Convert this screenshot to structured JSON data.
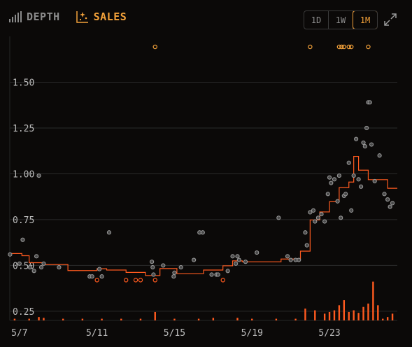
{
  "header": {
    "depth_label": "DEPTH",
    "sales_label": "SALES",
    "ranges": [
      "1D",
      "1W",
      "1M"
    ],
    "active_range": "1M"
  },
  "colors": {
    "accent": "#f4a23a",
    "line": "#ff5a1f",
    "point_fill": "#4a4a4a",
    "point_stroke": "#9a9a9a",
    "grid": "#2a2a2a"
  },
  "chart_data": {
    "type": "scatter",
    "xlabel": "",
    "ylabel": "",
    "x_range": [
      "2025-05-06T12:00",
      "2025-05-26T12:00"
    ],
    "ylim": [
      0.2,
      1.75
    ],
    "yticks": [
      0.25,
      0.5,
      0.75,
      1.0,
      1.25,
      1.5
    ],
    "ytick_labels": [
      "0.25",
      "0.50",
      "0.75",
      "1.00",
      "1.25",
      "1.50"
    ],
    "xticks": [
      "2025-05-07",
      "2025-05-11",
      "2025-05-15",
      "2025-05-19",
      "2025-05-23"
    ],
    "xtick_labels": [
      "5/7",
      "5/11",
      "5/15",
      "5/19",
      "5/23"
    ],
    "grid": true,
    "sales": [
      [
        "2025-05-06T12:20",
        0.56
      ],
      [
        "2025-05-07T00:00",
        0.51
      ],
      [
        "2025-05-07T04:00",
        0.64
      ],
      [
        "2025-05-07T13:00",
        0.49
      ],
      [
        "2025-05-07T18:00",
        0.47
      ],
      [
        "2025-05-07T21:00",
        0.55
      ],
      [
        "2025-05-08T00:00",
        0.99
      ],
      [
        "2025-05-08T03:00",
        0.49
      ],
      [
        "2025-05-08T06:00",
        0.51
      ],
      [
        "2025-05-09T01:00",
        0.49
      ],
      [
        "2025-05-10T15:00",
        0.44
      ],
      [
        "2025-05-10T18:00",
        0.44
      ],
      [
        "2025-05-11T03:00",
        0.48
      ],
      [
        "2025-05-11T06:00",
        0.44
      ],
      [
        "2025-05-11T15:00",
        0.68
      ],
      [
        "2025-05-13T20:00",
        0.52
      ],
      [
        "2025-05-13T21:00",
        0.49
      ],
      [
        "2025-05-13T22:00",
        0.45
      ],
      [
        "2025-05-14T10:00",
        0.5
      ],
      [
        "2025-05-14T23:00",
        0.44
      ],
      [
        "2025-05-15T00:00",
        0.46
      ],
      [
        "2025-05-15T08:00",
        0.49
      ],
      [
        "2025-05-16T00:00",
        0.53
      ],
      [
        "2025-05-16T07:00",
        0.68
      ],
      [
        "2025-05-16T11:00",
        0.68
      ],
      [
        "2025-05-16T22:00",
        0.45
      ],
      [
        "2025-05-17T04:00",
        0.45
      ],
      [
        "2025-05-17T06:00",
        0.45
      ],
      [
        "2025-05-17T18:00",
        0.47
      ],
      [
        "2025-05-18T00:00",
        0.55
      ],
      [
        "2025-05-18T04:00",
        0.51
      ],
      [
        "2025-05-18T06:00",
        0.55
      ],
      [
        "2025-05-18T08:00",
        0.53
      ],
      [
        "2025-05-18T16:00",
        0.52
      ],
      [
        "2025-05-19T06:00",
        0.57
      ],
      [
        "2025-05-20T09:00",
        0.76
      ],
      [
        "2025-05-20T20:00",
        0.55
      ],
      [
        "2025-05-21T00:00",
        0.53
      ],
      [
        "2025-05-21T06:00",
        0.53
      ],
      [
        "2025-05-21T10:00",
        0.53
      ],
      [
        "2025-05-21T18:00",
        0.68
      ],
      [
        "2025-05-21T20:00",
        0.61
      ],
      [
        "2025-05-22T00:00",
        0.79
      ],
      [
        "2025-05-22T04:00",
        0.8
      ],
      [
        "2025-05-22T06:00",
        0.74
      ],
      [
        "2025-05-22T10:00",
        0.76
      ],
      [
        "2025-05-22T14:00",
        0.78
      ],
      [
        "2025-05-22T18:00",
        0.74
      ],
      [
        "2025-05-22T22:00",
        0.89
      ],
      [
        "2025-05-23T00:00",
        0.98
      ],
      [
        "2025-05-23T02:00",
        0.95
      ],
      [
        "2025-05-23T06:00",
        0.97
      ],
      [
        "2025-05-23T10:00",
        0.85
      ],
      [
        "2025-05-23T12:00",
        0.99
      ],
      [
        "2025-05-23T14:00",
        0.76
      ],
      [
        "2025-05-23T18:00",
        0.88
      ],
      [
        "2025-05-23T20:00",
        0.89
      ],
      [
        "2025-05-24T00:00",
        1.06
      ],
      [
        "2025-05-24T03:00",
        0.8
      ],
      [
        "2025-05-24T06:00",
        0.99
      ],
      [
        "2025-05-24T09:00",
        1.19
      ],
      [
        "2025-05-24T12:00",
        0.97
      ],
      [
        "2025-05-24T15:00",
        0.93
      ],
      [
        "2025-05-24T18:00",
        1.17
      ],
      [
        "2025-05-24T20:00",
        1.15
      ],
      [
        "2025-05-24T22:00",
        1.25
      ],
      [
        "2025-05-25T00:00",
        1.39
      ],
      [
        "2025-05-25T02:00",
        1.39
      ],
      [
        "2025-05-25T04:00",
        1.16
      ],
      [
        "2025-05-25T08:00",
        0.96
      ],
      [
        "2025-05-25T14:00",
        1.1
      ],
      [
        "2025-05-25T20:00",
        0.89
      ],
      [
        "2025-05-26T00:00",
        0.86
      ],
      [
        "2025-05-26T03:00",
        0.82
      ],
      [
        "2025-05-26T06:00",
        0.84
      ]
    ],
    "floor_step": [
      [
        "2025-05-06T12:00",
        0.565
      ],
      [
        "2025-05-07T03:00",
        0.553
      ],
      [
        "2025-05-07T12:00",
        0.515
      ],
      [
        "2025-05-08T06:00",
        0.505
      ],
      [
        "2025-05-09T12:00",
        0.472
      ],
      [
        "2025-05-11T00:00",
        0.482
      ],
      [
        "2025-05-11T12:00",
        0.475
      ],
      [
        "2025-05-12T12:00",
        0.462
      ],
      [
        "2025-05-13T12:00",
        0.445
      ],
      [
        "2025-05-14T06:00",
        0.483
      ],
      [
        "2025-05-15T03:00",
        0.455
      ],
      [
        "2025-05-16T12:00",
        0.475
      ],
      [
        "2025-05-17T12:00",
        0.498
      ],
      [
        "2025-05-18T00:00",
        0.525
      ],
      [
        "2025-05-18T12:00",
        0.52
      ],
      [
        "2025-05-20T12:00",
        0.535
      ],
      [
        "2025-05-21T12:00",
        0.578
      ],
      [
        "2025-05-22T00:00",
        0.748
      ],
      [
        "2025-05-22T12:00",
        0.792
      ],
      [
        "2025-05-23T00:00",
        0.848
      ],
      [
        "2025-05-23T12:00",
        0.925
      ],
      [
        "2025-05-24T00:00",
        0.955
      ],
      [
        "2025-05-24T06:00",
        1.095
      ],
      [
        "2025-05-24T12:00",
        1.02
      ],
      [
        "2025-05-25T00:00",
        0.968
      ],
      [
        "2025-05-26T00:00",
        0.921
      ],
      [
        "2025-05-26T12:00",
        0.921
      ]
    ],
    "outliers_above": [
      "2025-05-14T00:00",
      "2025-05-22T00:00",
      "2025-05-23T12:00",
      "2025-05-23T15:00",
      "2025-05-23T18:00",
      "2025-05-24T00:00",
      "2025-05-24T03:00",
      "2025-05-25T00:00"
    ],
    "low_sales": [
      [
        "2025-05-11T00:00",
        0.42
      ],
      [
        "2025-05-12T12:00",
        0.42
      ],
      [
        "2025-05-13T00:00",
        0.42
      ],
      [
        "2025-05-13T06:00",
        0.42
      ],
      [
        "2025-05-14T00:00",
        0.42
      ],
      [
        "2025-05-17T12:00",
        0.42
      ]
    ],
    "volume": [
      [
        "2025-05-06T18:00",
        0.01
      ],
      [
        "2025-05-07T12:00",
        0.01
      ],
      [
        "2025-05-08T00:00",
        0.02
      ],
      [
        "2025-05-08T06:00",
        0.015
      ],
      [
        "2025-05-09T06:00",
        0.01
      ],
      [
        "2025-05-10T06:00",
        0.01
      ],
      [
        "2025-05-11T06:00",
        0.01
      ],
      [
        "2025-05-12T06:00",
        0.01
      ],
      [
        "2025-05-13T06:00",
        0.01
      ],
      [
        "2025-05-14T00:00",
        0.05
      ],
      [
        "2025-05-15T00:00",
        0.01
      ],
      [
        "2025-05-16T06:00",
        0.01
      ],
      [
        "2025-05-17T00:00",
        0.015
      ],
      [
        "2025-05-18T06:00",
        0.015
      ],
      [
        "2025-05-19T00:00",
        0.01
      ],
      [
        "2025-05-20T06:00",
        0.01
      ],
      [
        "2025-05-21T06:00",
        0.01
      ],
      [
        "2025-05-21T18:00",
        0.07
      ],
      [
        "2025-05-22T06:00",
        0.06
      ],
      [
        "2025-05-22T18:00",
        0.04
      ],
      [
        "2025-05-23T00:00",
        0.05
      ],
      [
        "2025-05-23T06:00",
        0.06
      ],
      [
        "2025-05-23T12:00",
        0.09
      ],
      [
        "2025-05-23T18:00",
        0.12
      ],
      [
        "2025-05-24T00:00",
        0.05
      ],
      [
        "2025-05-24T06:00",
        0.06
      ],
      [
        "2025-05-24T12:00",
        0.045
      ],
      [
        "2025-05-24T18:00",
        0.08
      ],
      [
        "2025-05-25T00:00",
        0.1
      ],
      [
        "2025-05-25T06:00",
        0.23
      ],
      [
        "2025-05-25T12:00",
        0.09
      ],
      [
        "2025-05-25T18:00",
        0.01
      ],
      [
        "2025-05-26T00:00",
        0.02
      ],
      [
        "2025-05-26T06:00",
        0.04
      ]
    ]
  }
}
